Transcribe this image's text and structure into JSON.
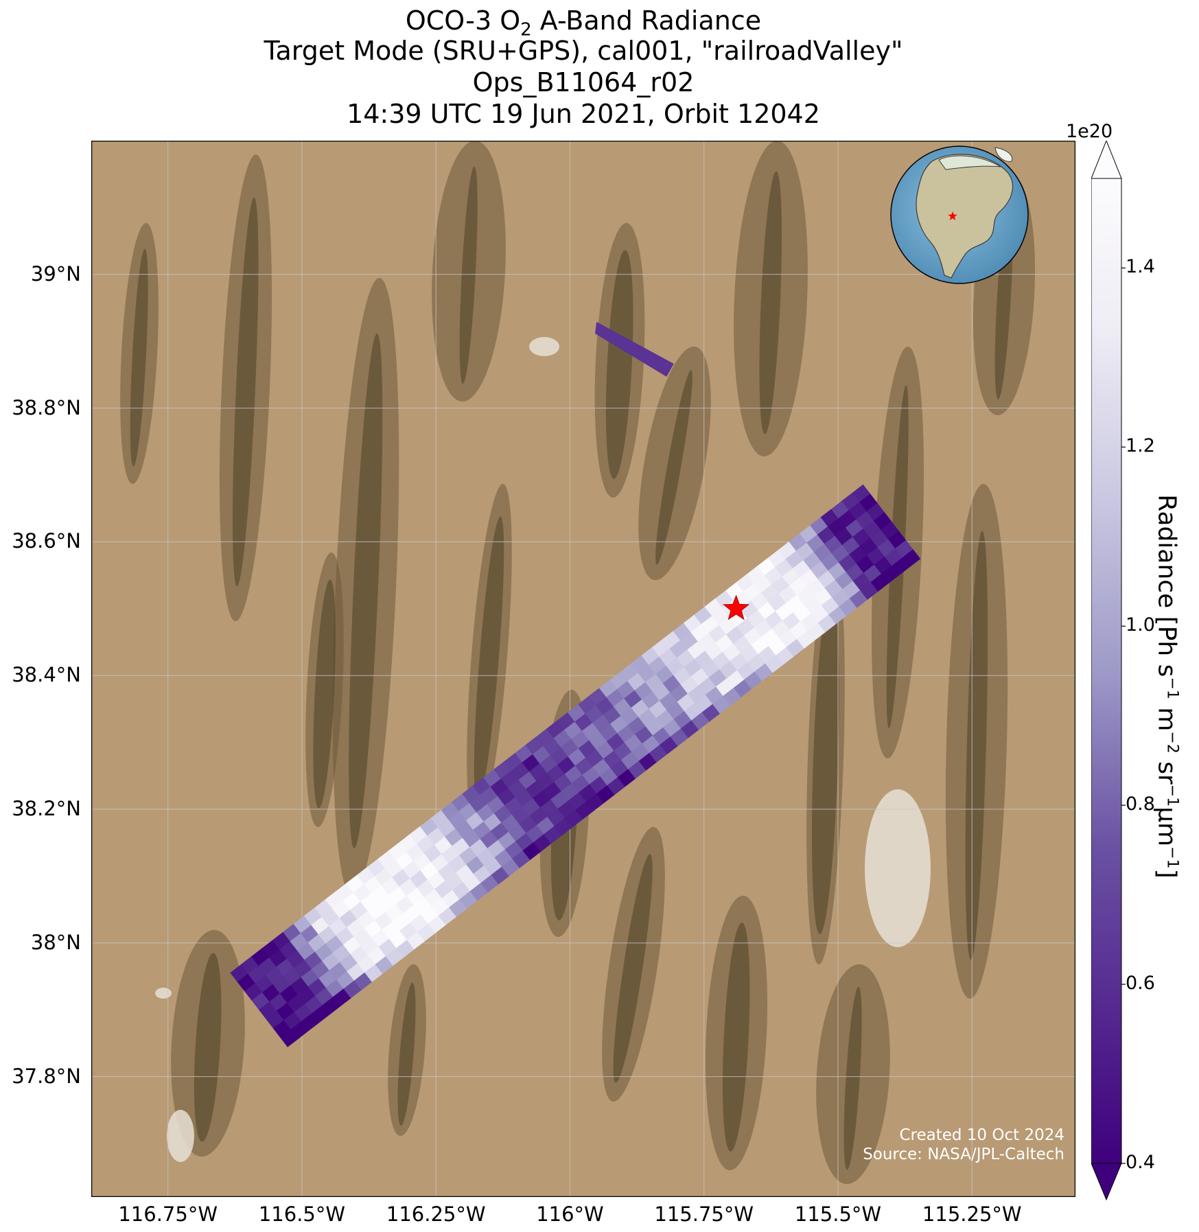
{
  "title": {
    "line1_prefix": "OCO-3 O",
    "line1_sub": "2",
    "line1_suffix": " A-Band Radiance",
    "line2": "Target Mode (SRU+GPS), cal001, \"railroadValley\"",
    "line3": "Ops_B11064_r02",
    "line4": "14:39 UTC 19 Jun 2021, Orbit 12042"
  },
  "colors": {
    "terrain_base": "#b89a74",
    "terrain_dark": "#6e5a3a",
    "playa": "#e6e0d6",
    "grid": "#c8c8c8",
    "star": "#ff0000",
    "cmap_low": "#3f007d",
    "cmap_mid": "#9e9ac8",
    "cmap_high": "#fcfbfd",
    "ocean": "#6aa4c8"
  },
  "axes": {
    "lon_ticks": [
      "116.75°W",
      "116.5°W",
      "116.25°W",
      "116°W",
      "115.75°W",
      "115.5°W",
      "115.25°W"
    ],
    "lon_values": [
      -116.75,
      -116.5,
      -116.25,
      -116.0,
      -115.75,
      -115.5,
      -115.25
    ],
    "lat_ticks": [
      "39°N",
      "38.8°N",
      "38.6°N",
      "38.4°N",
      "38.2°N",
      "38°N",
      "37.8°N"
    ],
    "lat_values": [
      39.0,
      38.8,
      38.6,
      38.4,
      38.2,
      38.0,
      37.8
    ],
    "lon_range": [
      -116.893,
      -115.057
    ],
    "lat_range": [
      37.62,
      39.2
    ]
  },
  "colorbar": {
    "exponent": "1e20",
    "label_main": "Radiance [Ph s",
    "label_parts": [
      "−1",
      " m",
      "−2",
      " sr",
      "−1",
      "μm",
      "−1",
      "]"
    ],
    "ticks": [
      "0.4",
      "0.6",
      "0.8",
      "1.0",
      "1.2",
      "1.4"
    ],
    "tick_values": [
      0.4,
      0.6,
      0.8,
      1.0,
      1.2,
      1.4
    ],
    "range": [
      0.4,
      1.5
    ],
    "extend": "both"
  },
  "chart_data": {
    "type": "map",
    "target": {
      "name": "railroadValley",
      "lon": -115.69,
      "lat": 38.5
    },
    "swath_main": {
      "start": {
        "lon": -116.58,
        "lat": 37.9
      },
      "end": {
        "lon": -115.4,
        "lat": 38.63
      },
      "width_deg": 0.14,
      "unit": "1e20 Ph s-1 m-2 sr-1 μm-1",
      "profile_along": [
        0.45,
        0.5,
        1.3,
        1.45,
        1.4,
        1.1,
        0.7,
        0.6,
        0.75,
        0.9,
        1.05,
        1.3,
        1.45,
        1.4,
        0.6,
        0.45
      ]
    },
    "swath_small": {
      "start": {
        "lon": -115.95,
        "lat": 38.92
      },
      "end": {
        "lon": -115.82,
        "lat": 38.86
      },
      "value": 0.62
    },
    "inset_globe": {
      "target_marker": "star",
      "region": "North America"
    }
  },
  "footer": {
    "created": "Created 10 Oct 2024",
    "source": "Source: NASA/JPL-Caltech"
  }
}
